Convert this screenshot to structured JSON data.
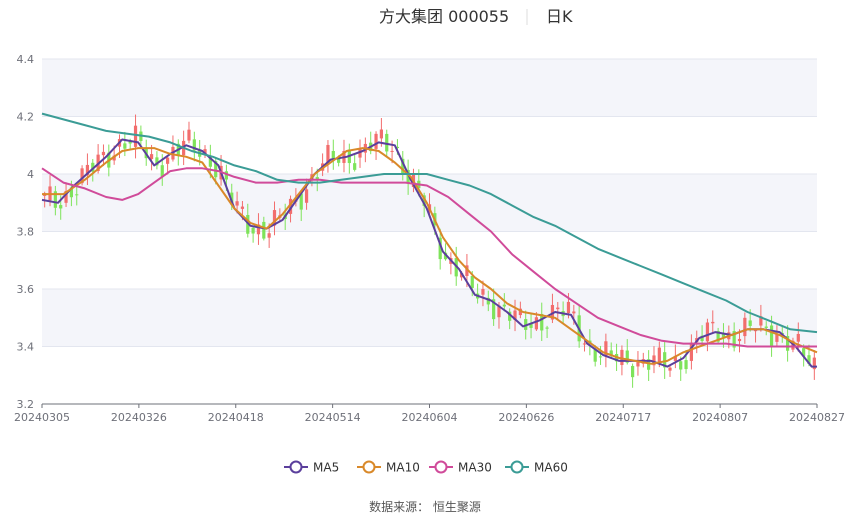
{
  "chart_data": {
    "type": "line",
    "title": {
      "stock": "方大集团 000055",
      "period": "日K"
    },
    "ylim": [
      3.2,
      4.4
    ],
    "y_ticks": [
      "3.2",
      "3.4",
      "3.6",
      "3.8",
      "4",
      "4.2",
      "4.4"
    ],
    "x_ticks": [
      "20240305",
      "20240326",
      "20240418",
      "20240514",
      "20240604",
      "20240626",
      "20240717",
      "20240807",
      "20240827"
    ],
    "candle_colors": {
      "up": "#f26d6d",
      "down": "#7ee35a"
    },
    "series": [
      {
        "name": "MA5",
        "color": "#5b3f9c",
        "values": [
          [
            0,
            3.91
          ],
          [
            3,
            3.9
          ],
          [
            6,
            3.96
          ],
          [
            9,
            4.01
          ],
          [
            12,
            4.06
          ],
          [
            15,
            4.12
          ],
          [
            18,
            4.11
          ],
          [
            21,
            4.03
          ],
          [
            24,
            4.07
          ],
          [
            27,
            4.1
          ],
          [
            30,
            4.08
          ],
          [
            33,
            4.03
          ],
          [
            36,
            3.88
          ],
          [
            39,
            3.82
          ],
          [
            42,
            3.81
          ],
          [
            45,
            3.84
          ],
          [
            48,
            3.92
          ],
          [
            51,
            4.0
          ],
          [
            54,
            4.05
          ],
          [
            57,
            4.06
          ],
          [
            60,
            4.08
          ],
          [
            63,
            4.11
          ],
          [
            66,
            4.1
          ],
          [
            69,
            3.98
          ],
          [
            72,
            3.88
          ],
          [
            75,
            3.73
          ],
          [
            78,
            3.67
          ],
          [
            81,
            3.58
          ],
          [
            84,
            3.56
          ],
          [
            87,
            3.52
          ],
          [
            90,
            3.47
          ],
          [
            93,
            3.49
          ],
          [
            96,
            3.52
          ],
          [
            99,
            3.51
          ],
          [
            102,
            3.41
          ],
          [
            105,
            3.37
          ],
          [
            108,
            3.35
          ],
          [
            111,
            3.35
          ],
          [
            114,
            3.35
          ],
          [
            117,
            3.33
          ],
          [
            120,
            3.36
          ],
          [
            123,
            3.43
          ],
          [
            126,
            3.45
          ],
          [
            129,
            3.44
          ],
          [
            132,
            3.46
          ],
          [
            135,
            3.46
          ],
          [
            138,
            3.45
          ],
          [
            141,
            3.4
          ],
          [
            144,
            3.33
          ],
          [
            145,
            3.33
          ]
        ]
      },
      {
        "name": "MA10",
        "color": "#d9892a",
        "values": [
          [
            0,
            3.93
          ],
          [
            4,
            3.93
          ],
          [
            8,
            3.98
          ],
          [
            12,
            4.04
          ],
          [
            15,
            4.08
          ],
          [
            18,
            4.09
          ],
          [
            21,
            4.09
          ],
          [
            24,
            4.07
          ],
          [
            27,
            4.06
          ],
          [
            30,
            4.04
          ],
          [
            33,
            3.96
          ],
          [
            36,
            3.88
          ],
          [
            39,
            3.83
          ],
          [
            42,
            3.81
          ],
          [
            45,
            3.86
          ],
          [
            48,
            3.93
          ],
          [
            51,
            4.0
          ],
          [
            54,
            4.04
          ],
          [
            57,
            4.08
          ],
          [
            60,
            4.09
          ],
          [
            63,
            4.08
          ],
          [
            66,
            4.04
          ],
          [
            69,
            3.99
          ],
          [
            72,
            3.9
          ],
          [
            75,
            3.78
          ],
          [
            78,
            3.7
          ],
          [
            81,
            3.64
          ],
          [
            84,
            3.6
          ],
          [
            87,
            3.55
          ],
          [
            90,
            3.52
          ],
          [
            93,
            3.51
          ],
          [
            96,
            3.5
          ],
          [
            99,
            3.46
          ],
          [
            102,
            3.42
          ],
          [
            105,
            3.38
          ],
          [
            108,
            3.36
          ],
          [
            111,
            3.35
          ],
          [
            114,
            3.34
          ],
          [
            117,
            3.35
          ],
          [
            120,
            3.38
          ],
          [
            123,
            3.4
          ],
          [
            126,
            3.42
          ],
          [
            129,
            3.44
          ],
          [
            132,
            3.46
          ],
          [
            135,
            3.46
          ],
          [
            138,
            3.44
          ],
          [
            141,
            3.41
          ],
          [
            145,
            3.38
          ]
        ]
      },
      {
        "name": "MA30",
        "color": "#d04b9a",
        "values": [
          [
            0,
            4.02
          ],
          [
            4,
            3.97
          ],
          [
            8,
            3.95
          ],
          [
            12,
            3.92
          ],
          [
            15,
            3.91
          ],
          [
            18,
            3.93
          ],
          [
            21,
            3.97
          ],
          [
            24,
            4.01
          ],
          [
            27,
            4.02
          ],
          [
            30,
            4.02
          ],
          [
            33,
            4.01
          ],
          [
            36,
            3.99
          ],
          [
            40,
            3.97
          ],
          [
            44,
            3.97
          ],
          [
            48,
            3.98
          ],
          [
            52,
            3.98
          ],
          [
            56,
            3.97
          ],
          [
            60,
            3.97
          ],
          [
            64,
            3.97
          ],
          [
            68,
            3.97
          ],
          [
            72,
            3.96
          ],
          [
            76,
            3.92
          ],
          [
            80,
            3.86
          ],
          [
            84,
            3.8
          ],
          [
            88,
            3.72
          ],
          [
            92,
            3.66
          ],
          [
            96,
            3.6
          ],
          [
            100,
            3.55
          ],
          [
            104,
            3.5
          ],
          [
            108,
            3.47
          ],
          [
            112,
            3.44
          ],
          [
            116,
            3.42
          ],
          [
            120,
            3.41
          ],
          [
            124,
            3.41
          ],
          [
            128,
            3.41
          ],
          [
            132,
            3.4
          ],
          [
            136,
            3.4
          ],
          [
            140,
            3.4
          ],
          [
            145,
            3.4
          ]
        ]
      },
      {
        "name": "MA60",
        "color": "#3b9c96",
        "values": [
          [
            0,
            4.21
          ],
          [
            4,
            4.19
          ],
          [
            8,
            4.17
          ],
          [
            12,
            4.15
          ],
          [
            16,
            4.14
          ],
          [
            20,
            4.13
          ],
          [
            24,
            4.11
          ],
          [
            28,
            4.08
          ],
          [
            32,
            4.06
          ],
          [
            36,
            4.03
          ],
          [
            40,
            4.01
          ],
          [
            44,
            3.98
          ],
          [
            48,
            3.97
          ],
          [
            52,
            3.97
          ],
          [
            56,
            3.98
          ],
          [
            60,
            3.99
          ],
          [
            64,
            4.0
          ],
          [
            68,
            4.0
          ],
          [
            72,
            4.0
          ],
          [
            76,
            3.98
          ],
          [
            80,
            3.96
          ],
          [
            84,
            3.93
          ],
          [
            88,
            3.89
          ],
          [
            92,
            3.85
          ],
          [
            96,
            3.82
          ],
          [
            100,
            3.78
          ],
          [
            104,
            3.74
          ],
          [
            108,
            3.71
          ],
          [
            112,
            3.68
          ],
          [
            116,
            3.65
          ],
          [
            120,
            3.62
          ],
          [
            124,
            3.59
          ],
          [
            128,
            3.56
          ],
          [
            132,
            3.52
          ],
          [
            136,
            3.49
          ],
          [
            140,
            3.46
          ],
          [
            145,
            3.45
          ]
        ]
      }
    ],
    "legend_position": "bottom",
    "source": "数据来源：  恒生聚源",
    "grid": true
  }
}
